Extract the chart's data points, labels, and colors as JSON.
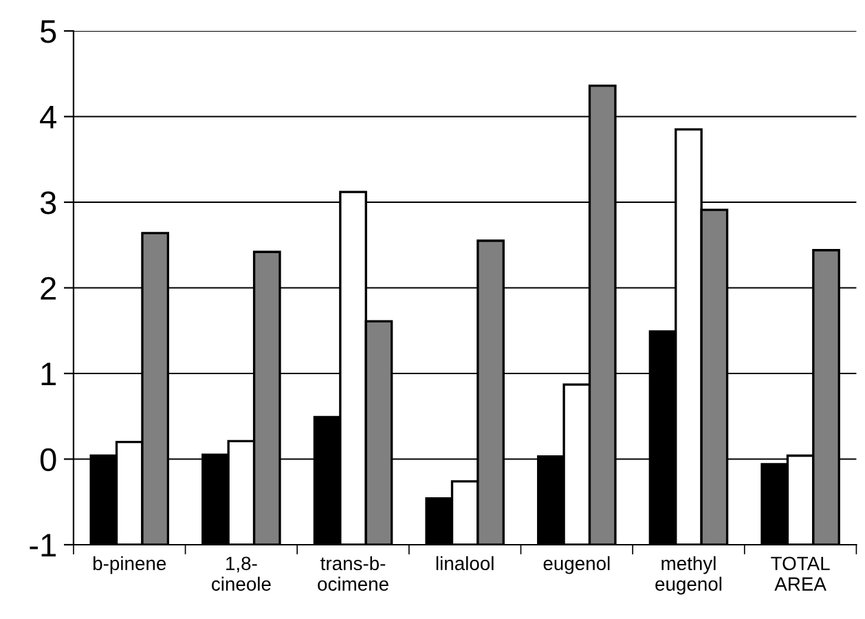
{
  "chart_data": {
    "type": "bar",
    "categories": [
      "b-pinene",
      "1,8-\ncineole",
      "trans-b-\nocimene",
      "linalool",
      "eugenol",
      "methyl\neugenol",
      "TOTAL\nAREA"
    ],
    "series": [
      {
        "color": "#000000",
        "base": [
          -1,
          -1,
          -1,
          -1,
          -1,
          -1,
          -1
        ],
        "values": [
          1.04,
          1.05,
          1.49,
          0.54,
          1.03,
          2.49,
          0.94
        ]
      },
      {
        "color": "#ffffff",
        "base": [
          -1,
          -1,
          -1,
          -1,
          -1,
          -1,
          -1
        ],
        "values": [
          1.2,
          1.21,
          4.12,
          0.74,
          1.87,
          4.85,
          1.04
        ]
      },
      {
        "color": "#808080",
        "base": [
          -1,
          -1,
          -1,
          -1,
          -1,
          -1,
          -1
        ],
        "values": [
          3.64,
          3.42,
          2.61,
          3.55,
          5.36,
          3.91,
          3.44
        ]
      }
    ],
    "ylim": [
      -1,
      5
    ],
    "yticks": [
      -1,
      0,
      1,
      2,
      3,
      4,
      5
    ],
    "grid": "y",
    "legend": false
  }
}
